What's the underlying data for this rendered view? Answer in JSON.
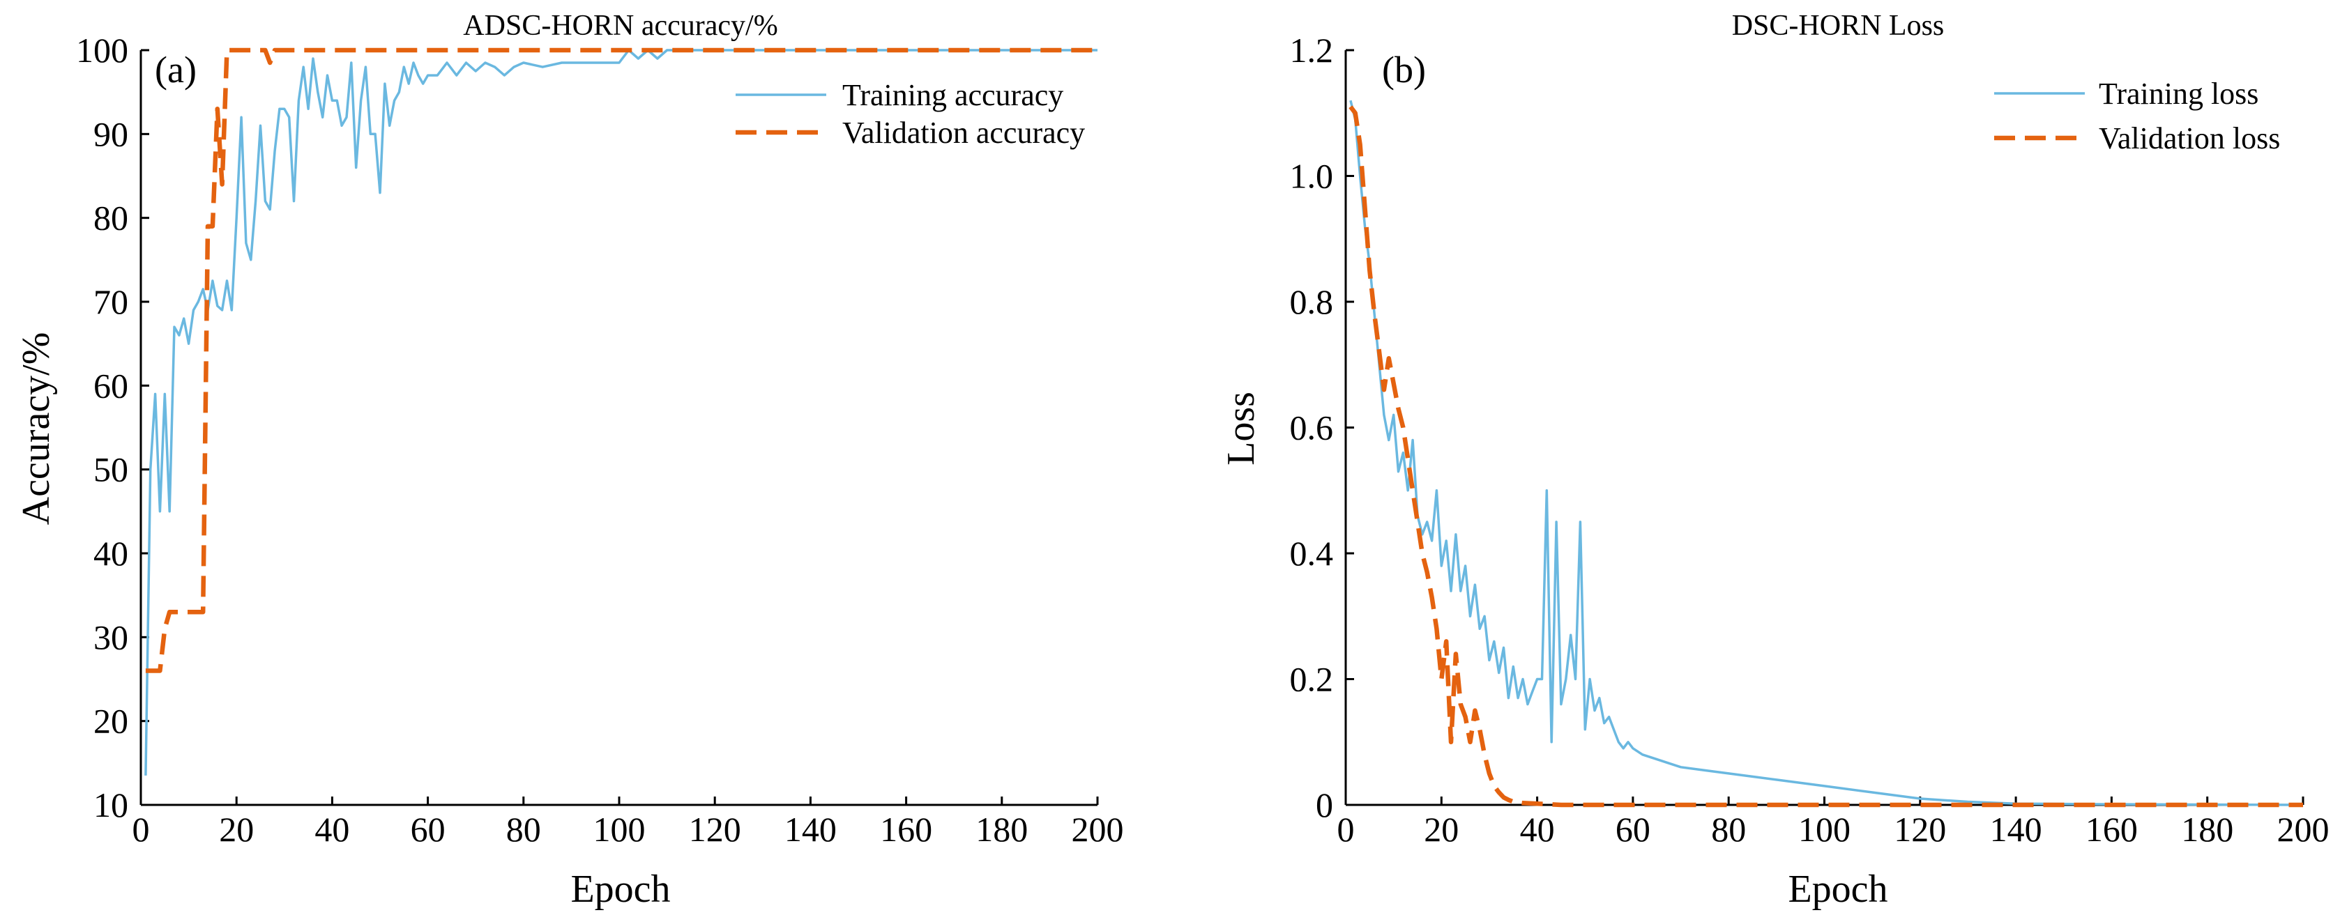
{
  "colors": {
    "training": "#6ab8e0",
    "validation": "#e4620f",
    "axis": "#000000"
  },
  "chart_data": [
    {
      "type": "line",
      "title": "ADSC-HORN accuracy/%",
      "panel_label": "(a)",
      "xlabel": "Epoch",
      "ylabel": "Accuracy/%",
      "xlim": [
        0,
        200
      ],
      "ylim": [
        10,
        100
      ],
      "xticks": [
        0,
        20,
        40,
        60,
        80,
        100,
        120,
        140,
        160,
        180,
        200
      ],
      "yticks": [
        10,
        20,
        30,
        40,
        50,
        60,
        70,
        80,
        90,
        100
      ],
      "grid": false,
      "legend_position": "top-right",
      "series": [
        {
          "name": "Training accuracy",
          "style": "solid",
          "color": "#6ab8e0",
          "x": [
            1,
            2,
            3,
            4,
            5,
            6,
            7,
            8,
            9,
            10,
            11,
            12,
            13,
            14,
            15,
            16,
            17,
            18,
            19,
            20,
            21,
            22,
            23,
            24,
            25,
            26,
            27,
            28,
            29,
            30,
            31,
            32,
            33,
            34,
            35,
            36,
            37,
            38,
            39,
            40,
            41,
            42,
            43,
            44,
            45,
            46,
            47,
            48,
            49,
            50,
            51,
            52,
            53,
            54,
            55,
            56,
            57,
            58,
            59,
            60,
            62,
            64,
            66,
            68,
            70,
            72,
            74,
            76,
            78,
            80,
            84,
            88,
            92,
            96,
            100,
            102,
            104,
            106,
            108,
            110,
            112,
            120,
            140,
            160,
            180,
            200
          ],
          "y": [
            13.5,
            50,
            59,
            45,
            59,
            45,
            67,
            66,
            68,
            65,
            69,
            70,
            71.5,
            69,
            72.5,
            69.5,
            69,
            72.5,
            69,
            80,
            92,
            77,
            75,
            82,
            91,
            82,
            81,
            88,
            93,
            93,
            92,
            82,
            94,
            98,
            93,
            99,
            95,
            92,
            97,
            94,
            94,
            91,
            92,
            98.5,
            86,
            94,
            98,
            90,
            90,
            83,
            96,
            91,
            94,
            95,
            98,
            96,
            98.5,
            97,
            96,
            97,
            97,
            98.5,
            97,
            98.5,
            97.5,
            98.5,
            98,
            97,
            98,
            98.5,
            98,
            98.5,
            98.5,
            98.5,
            98.5,
            100,
            99,
            100,
            99,
            100,
            100,
            100,
            100,
            100,
            100,
            100
          ]
        },
        {
          "name": "Validation accuracy",
          "style": "dashed",
          "color": "#e4620f",
          "x": [
            1,
            4,
            5,
            6,
            12,
            13,
            14,
            15,
            16,
            17,
            18,
            19,
            20,
            24,
            26,
            27,
            28,
            30,
            60,
            100,
            150,
            200
          ],
          "y": [
            26,
            26,
            31,
            33,
            33,
            33,
            79,
            79,
            93,
            84,
            100,
            100,
            100,
            100,
            100,
            98.5,
            100,
            100,
            100,
            100,
            100,
            100
          ]
        }
      ]
    },
    {
      "type": "line",
      "title": "DSC-HORN Loss",
      "panel_label": "(b)",
      "xlabel": "Epoch",
      "ylabel": "Loss",
      "xlim": [
        0,
        200
      ],
      "ylim": [
        0,
        1.2
      ],
      "xticks": [
        0,
        20,
        40,
        60,
        80,
        100,
        120,
        140,
        160,
        180,
        200
      ],
      "yticks": [
        0,
        0.2,
        0.4,
        0.6,
        0.8,
        1.0,
        1.2
      ],
      "ytick_labels": [
        "0",
        "0.2",
        "0.4",
        "0.6",
        "0.8",
        "1.0",
        "1.2"
      ],
      "grid": false,
      "legend_position": "top-right",
      "series": [
        {
          "name": "Training loss",
          "style": "solid",
          "color": "#6ab8e0",
          "x": [
            1,
            2,
            3,
            4,
            5,
            6,
            7,
            8,
            9,
            10,
            11,
            12,
            13,
            14,
            15,
            16,
            17,
            18,
            19,
            20,
            21,
            22,
            23,
            24,
            25,
            26,
            27,
            28,
            29,
            30,
            31,
            32,
            33,
            34,
            35,
            36,
            37,
            38,
            39,
            40,
            41,
            42,
            43,
            44,
            45,
            46,
            47,
            48,
            49,
            50,
            51,
            52,
            53,
            54,
            55,
            56,
            57,
            58,
            59,
            60,
            62,
            64,
            66,
            68,
            70,
            75,
            80,
            85,
            90,
            100,
            110,
            120,
            130,
            140,
            160,
            200
          ],
          "y": [
            1.12,
            1.09,
            1.0,
            0.92,
            0.86,
            0.78,
            0.7,
            0.62,
            0.58,
            0.62,
            0.53,
            0.56,
            0.5,
            0.58,
            0.46,
            0.43,
            0.45,
            0.42,
            0.5,
            0.38,
            0.42,
            0.34,
            0.43,
            0.34,
            0.38,
            0.3,
            0.35,
            0.28,
            0.3,
            0.23,
            0.26,
            0.21,
            0.25,
            0.17,
            0.22,
            0.17,
            0.2,
            0.16,
            0.18,
            0.2,
            0.2,
            0.5,
            0.1,
            0.45,
            0.16,
            0.2,
            0.27,
            0.2,
            0.45,
            0.12,
            0.2,
            0.15,
            0.17,
            0.13,
            0.14,
            0.12,
            0.1,
            0.09,
            0.1,
            0.09,
            0.08,
            0.075,
            0.07,
            0.065,
            0.06,
            0.055,
            0.05,
            0.045,
            0.04,
            0.03,
            0.02,
            0.01,
            0.005,
            0.002,
            0.001,
            0.0
          ]
        },
        {
          "name": "Validation loss",
          "style": "dashed",
          "color": "#e4620f",
          "x": [
            1,
            2,
            3,
            4,
            5,
            6,
            7,
            8,
            9,
            10,
            11,
            12,
            13,
            14,
            15,
            16,
            17,
            18,
            19,
            20,
            21,
            22,
            23,
            24,
            25,
            26,
            27,
            28,
            29,
            30,
            31,
            32,
            33,
            34,
            35,
            37,
            40,
            45,
            60,
            100,
            150,
            200
          ],
          "y": [
            1.11,
            1.1,
            1.05,
            0.95,
            0.85,
            0.78,
            0.72,
            0.66,
            0.71,
            0.67,
            0.63,
            0.6,
            0.55,
            0.5,
            0.45,
            0.4,
            0.37,
            0.33,
            0.28,
            0.2,
            0.26,
            0.1,
            0.24,
            0.16,
            0.14,
            0.1,
            0.15,
            0.12,
            0.08,
            0.05,
            0.03,
            0.02,
            0.012,
            0.008,
            0.005,
            0.003,
            0.002,
            0.0,
            0.0,
            0.0,
            0.0,
            0.0
          ]
        }
      ]
    }
  ]
}
